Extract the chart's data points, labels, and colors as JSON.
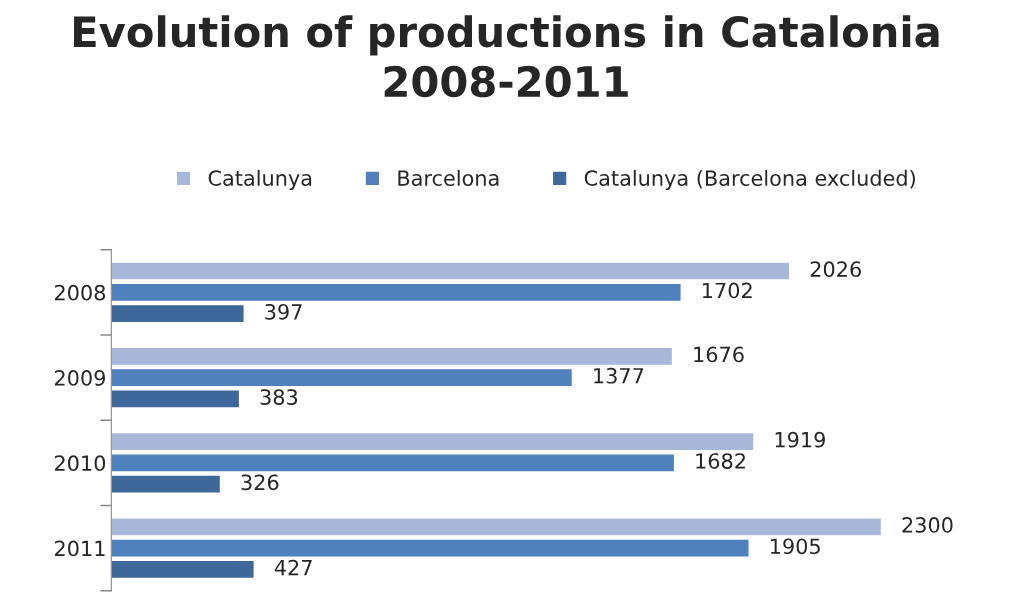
{
  "chart_data": {
    "type": "bar",
    "orientation": "horizontal",
    "title": "Evolution of productions in Catalonia\n2008-2011",
    "categories": [
      "2008",
      "2009",
      "2010",
      "2011"
    ],
    "series": [
      {
        "name": "Catalunya",
        "color": "#a9b8d8",
        "values": [
          2026,
          1676,
          1919,
          2300
        ]
      },
      {
        "name": "Barcelona",
        "color": "#4f81bd",
        "values": [
          1702,
          1377,
          1682,
          1905
        ]
      },
      {
        "name": "Catalunya (Barcelona excluded)",
        "color": "#3e679a",
        "values": [
          397,
          383,
          326,
          427
        ]
      }
    ],
    "data_labels": true,
    "legend": "top",
    "grid": false
  }
}
